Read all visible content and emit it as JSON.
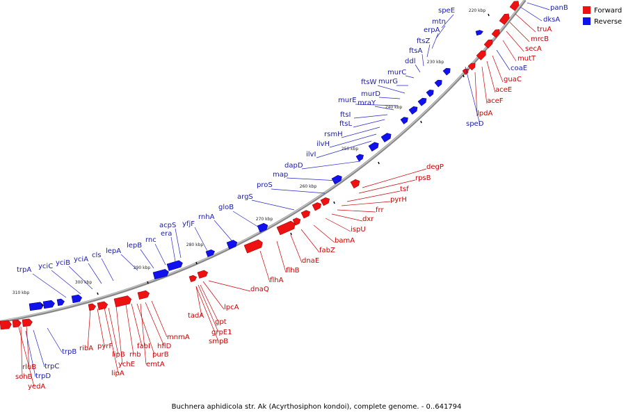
{
  "legend": {
    "forward": {
      "label": "Forward",
      "color": "#ee1111"
    },
    "reverse": {
      "label": "Reverse",
      "color": "#1111ee"
    }
  },
  "caption": "Buchnera aphidicola str. Ak (Acyrthosiphon kondoi), complete genome. - 0..641794",
  "ticks": [
    "220 kbp",
    "230 kbp",
    "240 kbp",
    "250 kbp",
    "260 kbp",
    "270 kbp",
    "280 kbp",
    "290 kbp",
    "300 kbp",
    "310 kbp"
  ],
  "reverse_genes": [
    "panB",
    "dksA",
    "speE",
    "mtn",
    "erpA",
    "ftsZ",
    "ftsA",
    "ddl",
    "murC",
    "murG",
    "ftsW",
    "murD",
    "murE",
    "mraY",
    "ftsI",
    "ftsL",
    "rsmH",
    "ilvH",
    "ilvI",
    "dapD",
    "map",
    "proS",
    "argS",
    "gloB",
    "rnhA",
    "yfjF",
    "acpS",
    "era",
    "rnc",
    "lepB",
    "lepA",
    "cls",
    "yciA",
    "yciB",
    "yciC",
    "trpA",
    "speD",
    "coaE",
    "trpB",
    "trpC",
    "trpD"
  ],
  "forward_genes": [
    "truA",
    "mrcB",
    "secA",
    "mutT",
    "guaC",
    "aceE",
    "aceF",
    "lpdA",
    "degP",
    "rpsB",
    "tsf",
    "pyrH",
    "frr",
    "dxr",
    "ispU",
    "bamA",
    "fabZ",
    "dnaE",
    "flhB",
    "flhA",
    "dnaQ",
    "lpcA",
    "tadA",
    "gpt",
    "grpE1",
    "smpB",
    "mnmA",
    "hflD",
    "emtA",
    "purB",
    "fabI",
    "rnb",
    "ychE",
    "lipB",
    "lipA",
    "pyrF",
    "ribA",
    "rluB",
    "sohB",
    "yedA"
  ]
}
